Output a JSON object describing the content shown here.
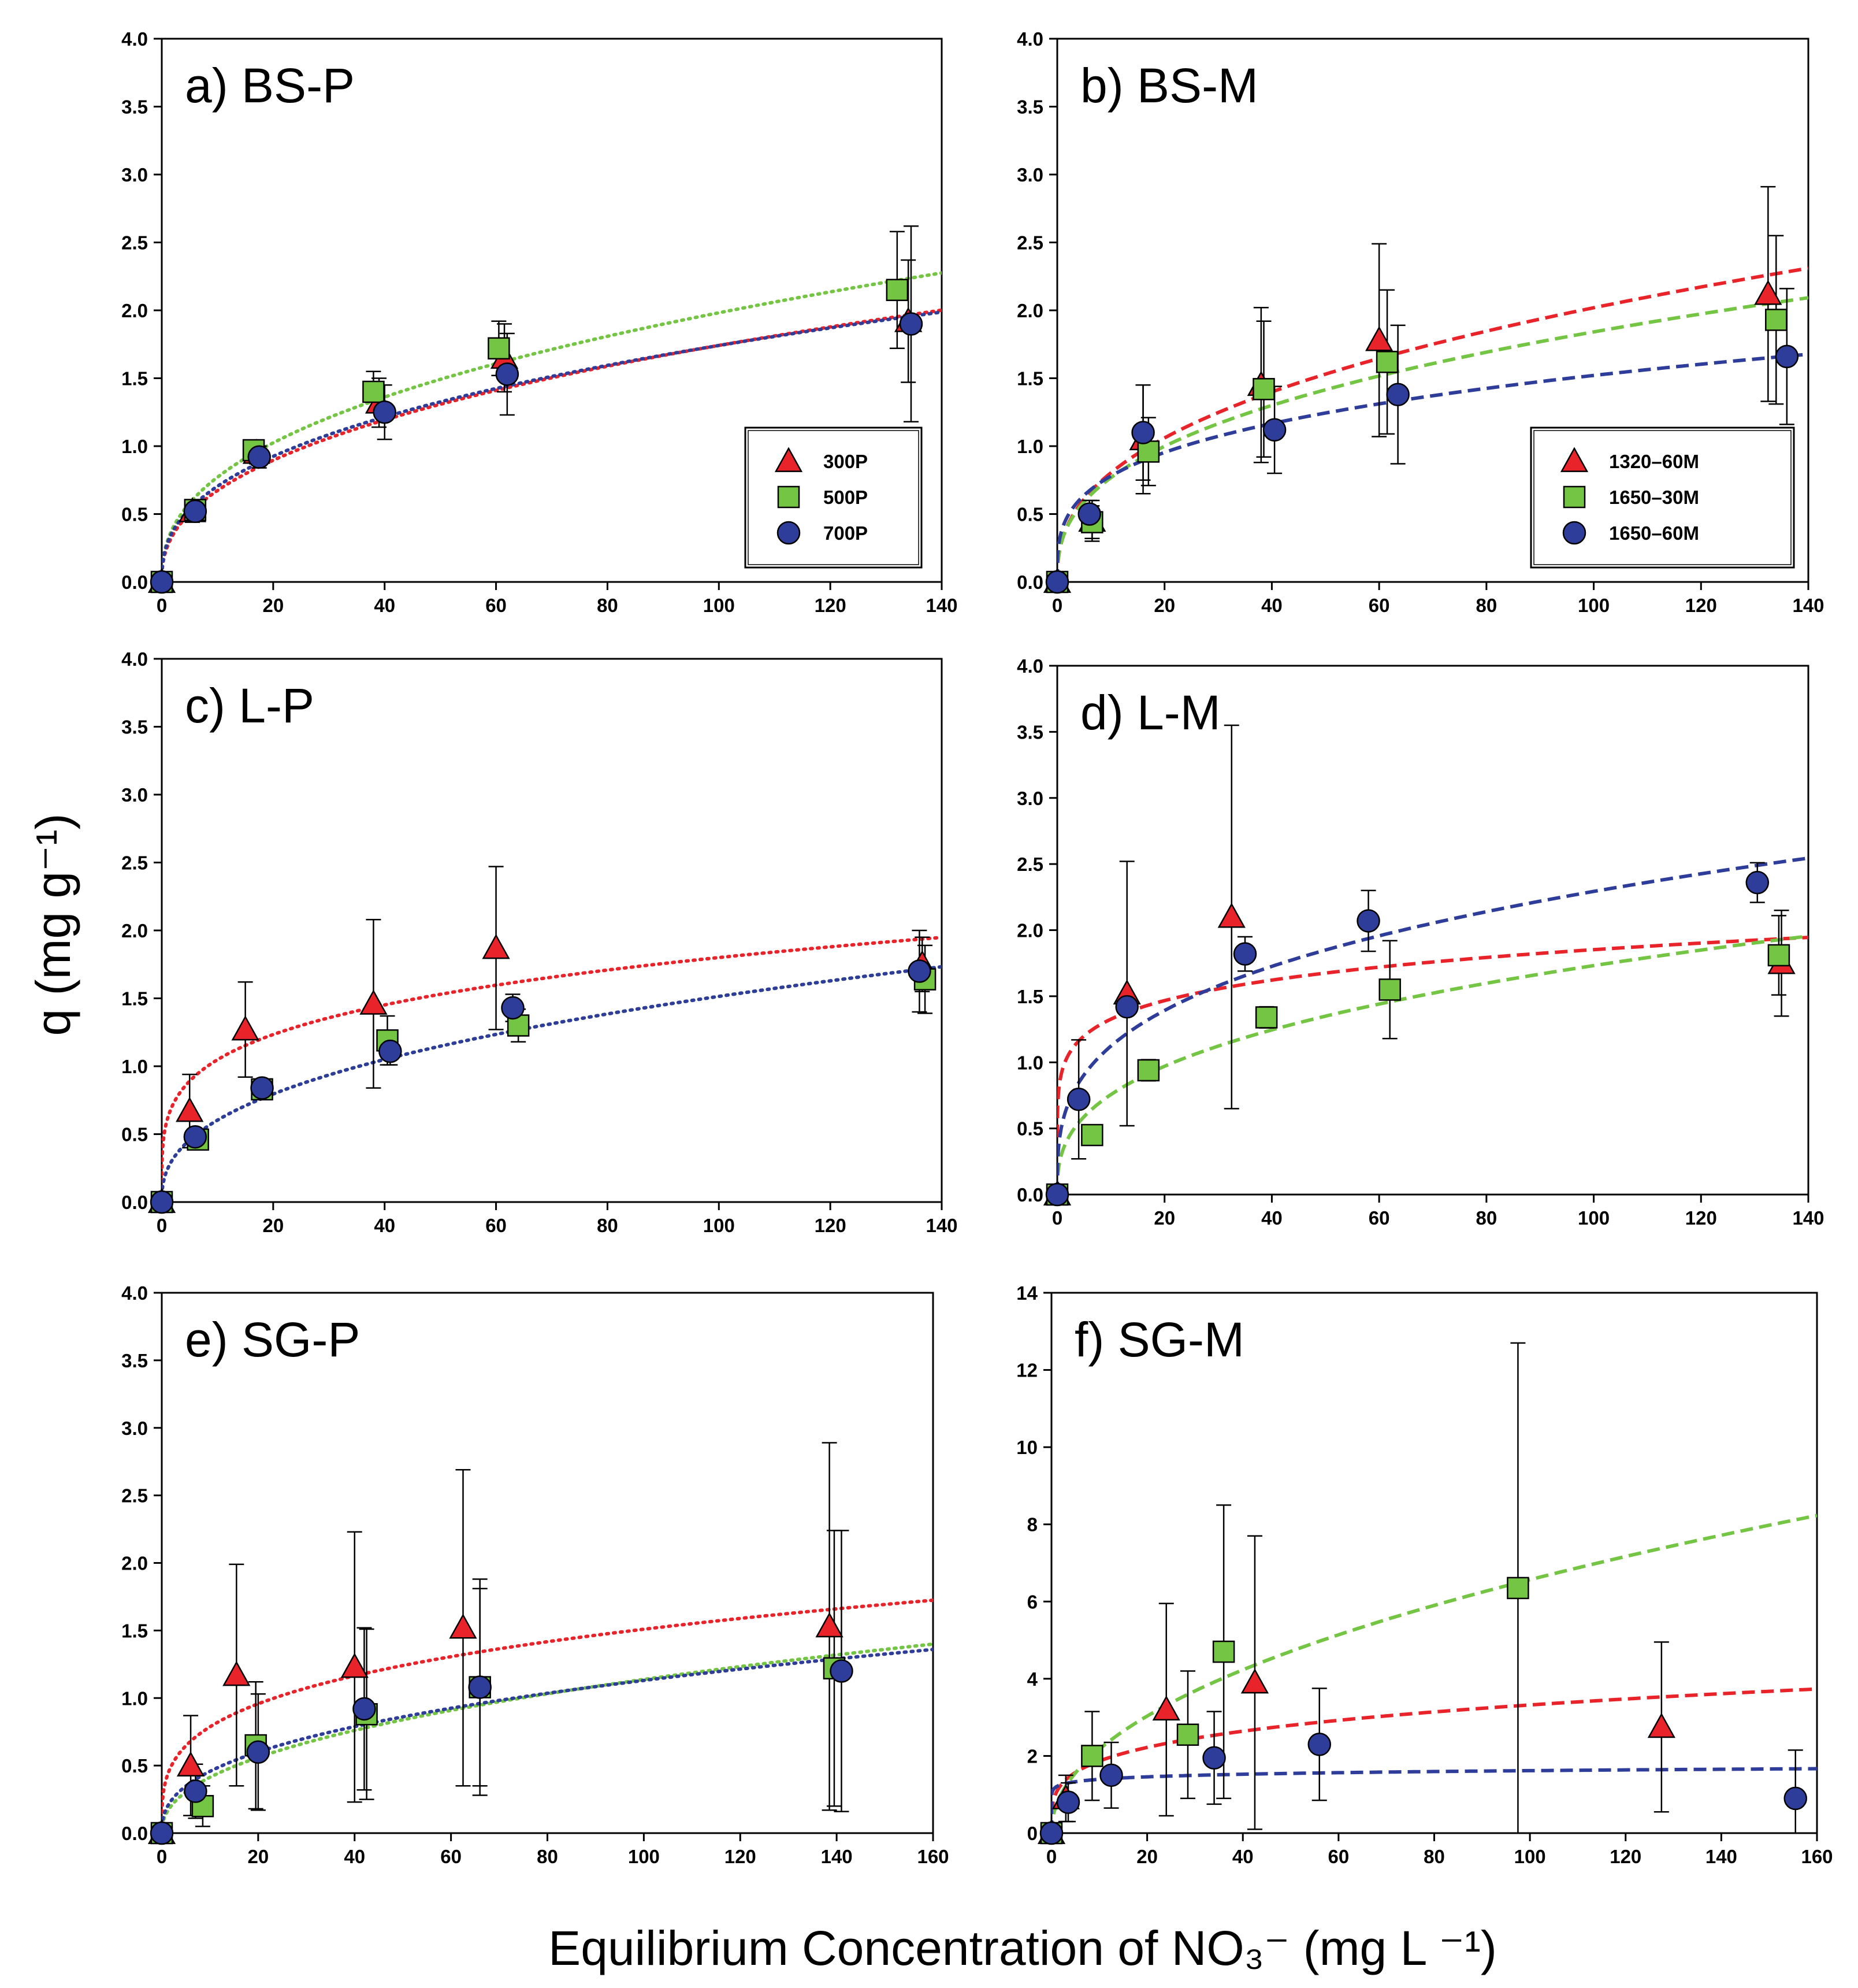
{
  "figure": {
    "ylabel": "q (mg g⁻¹)",
    "xlabel": "Equilibrium Concentration of NO₃⁻ (mg L ⁻¹)"
  },
  "colors": {
    "red": "#e8232a",
    "green": "#74c543",
    "blue": "#2e3d99"
  },
  "chart_data": [
    {
      "id": "a",
      "title": "a) BS-P",
      "type": "scatter",
      "xlim": [
        0,
        140
      ],
      "ylim": [
        0,
        4
      ],
      "xticks": [
        "0",
        "20",
        "40",
        "60",
        "80",
        "100",
        "120",
        "140"
      ],
      "yticks": [
        "0.0",
        "0.5",
        "1.0",
        "1.5",
        "2.0",
        "2.5",
        "3.0",
        "3.5",
        "4.0"
      ],
      "fit_style": "dotted",
      "legend": [
        "300P",
        "500P",
        "700P"
      ],
      "legend_position": "bottom-right",
      "series": [
        {
          "name": "300P",
          "color": "red",
          "marker": "triangle",
          "x": [
            0,
            5.5,
            17,
            39,
            61.5,
            134
          ],
          "y": [
            0.0,
            0.52,
            0.95,
            1.32,
            1.65,
            1.92
          ],
          "err": [
            0,
            0.08,
            0.08,
            0.18,
            0.25,
            0.45
          ],
          "fit": {
            "model": "freundlich",
            "k": 0.26,
            "n": 0.413
          }
        },
        {
          "name": "500P",
          "color": "green",
          "marker": "square",
          "x": [
            0,
            6,
            16.5,
            38,
            60.5,
            132
          ],
          "y": [
            0.0,
            0.53,
            0.97,
            1.4,
            1.72,
            2.15
          ],
          "err": [
            0,
            0.06,
            0.06,
            0.15,
            0.2,
            0.43
          ],
          "fit": {
            "model": "freundlich",
            "k": 0.3,
            "n": 0.41
          }
        },
        {
          "name": "700P",
          "color": "blue",
          "marker": "circle",
          "x": [
            0,
            6,
            17.5,
            40,
            62,
            134.5
          ],
          "y": [
            0.0,
            0.52,
            0.92,
            1.25,
            1.53,
            1.9
          ],
          "err": [
            0,
            0.05,
            0.08,
            0.2,
            0.3,
            0.72
          ],
          "fit": {
            "model": "freundlich",
            "k": 0.285,
            "n": 0.393
          }
        }
      ]
    },
    {
      "id": "b",
      "title": "b) BS-M",
      "type": "scatter",
      "xlim": [
        0,
        140
      ],
      "ylim": [
        0,
        4
      ],
      "xticks": [
        "0",
        "20",
        "40",
        "60",
        "80",
        "100",
        "120",
        "140"
      ],
      "yticks": [
        "0.0",
        "0.5",
        "1.0",
        "1.5",
        "2.0",
        "2.5",
        "3.0",
        "3.5",
        "4.0"
      ],
      "fit_style": "dashed",
      "legend": [
        "1320–60M",
        "1650–30M",
        "1650–60M"
      ],
      "legend_position": "bottom-right",
      "series": [
        {
          "name": "1320–60M",
          "color": "red",
          "marker": "triangle",
          "x": [
            0,
            6.5,
            16,
            38,
            60,
            132.5
          ],
          "y": [
            0.0,
            0.45,
            1.05,
            1.45,
            1.78,
            2.12
          ],
          "err": [
            0,
            0.15,
            0.4,
            0.57,
            0.71,
            0.79
          ],
          "fit": {
            "model": "freundlich",
            "k": 0.32,
            "n": 0.4
          }
        },
        {
          "name": "1650–30M",
          "color": "green",
          "marker": "square",
          "x": [
            0,
            6.5,
            17,
            38.5,
            61.5,
            134
          ],
          "y": [
            0.0,
            0.44,
            0.96,
            1.42,
            1.62,
            1.93
          ],
          "err": [
            0,
            0.12,
            0.25,
            0.5,
            0.53,
            0.62
          ],
          "fit": {
            "model": "freundlich",
            "k": 0.32,
            "n": 0.38
          }
        },
        {
          "name": "1650–60M",
          "color": "blue",
          "marker": "circle",
          "x": [
            0,
            6,
            16,
            40.5,
            63.5,
            136
          ],
          "y": [
            0.0,
            0.5,
            1.1,
            1.12,
            1.38,
            1.66
          ],
          "err": [
            0,
            0.1,
            0.35,
            0.32,
            0.51,
            0.5
          ],
          "fit": {
            "model": "freundlich",
            "k": 0.4,
            "n": 0.29
          }
        }
      ]
    },
    {
      "id": "c",
      "title": "c) L-P",
      "type": "scatter",
      "xlim": [
        0,
        140
      ],
      "ylim": [
        0,
        4
      ],
      "xticks": [
        "0",
        "20",
        "40",
        "60",
        "80",
        "100",
        "120",
        "140"
      ],
      "yticks": [
        "0.0",
        "0.5",
        "1.0",
        "1.5",
        "2.0",
        "2.5",
        "3.0",
        "3.5",
        "4.0"
      ],
      "fit_style": "dotted",
      "series": [
        {
          "name": "300P",
          "color": "red",
          "marker": "triangle",
          "x": [
            0,
            5,
            15,
            38,
            60,
            136.5
          ],
          "y": [
            0.0,
            0.67,
            1.27,
            1.46,
            1.87,
            1.75
          ],
          "err": [
            0,
            0.27,
            0.35,
            0.62,
            0.6,
            0.2
          ],
          "fit": {
            "model": "freundlich",
            "k": 0.61,
            "n": 0.235
          }
        },
        {
          "name": "500P",
          "color": "green",
          "marker": "square",
          "x": [
            0,
            6.5,
            18,
            40.5,
            64,
            137
          ],
          "y": [
            0.0,
            0.46,
            0.83,
            1.19,
            1.3,
            1.64
          ],
          "err": [
            0,
            0.06,
            0.05,
            0.18,
            0.12,
            0.25
          ],
          "fit": {
            "model": "freundlich",
            "k": 0.24,
            "n": 0.4
          }
        },
        {
          "name": "700P",
          "color": "blue",
          "marker": "circle",
          "x": [
            0,
            6,
            18,
            41,
            63,
            136
          ],
          "y": [
            0.0,
            0.48,
            0.84,
            1.11,
            1.43,
            1.7
          ],
          "err": [
            0,
            0.05,
            0.05,
            0.1,
            0.1,
            0.3
          ],
          "fit": {
            "model": "freundlich",
            "k": 0.24,
            "n": 0.4
          }
        }
      ]
    },
    {
      "id": "d",
      "title": "d) L-M",
      "type": "scatter",
      "xlim": [
        0,
        140
      ],
      "ylim": [
        0,
        4
      ],
      "xticks": [
        "0",
        "20",
        "40",
        "60",
        "80",
        "100",
        "120",
        "140"
      ],
      "yticks": [
        "0.0",
        "0.5",
        "1.0",
        "1.5",
        "2.0",
        "2.5",
        "3.0",
        "3.5",
        "4.0"
      ],
      "fit_style": "dashed",
      "series": [
        {
          "name": "1320–60M",
          "color": "red",
          "marker": "triangle",
          "x": [
            0,
            13,
            32.5,
            135
          ],
          "y": [
            0.0,
            1.52,
            2.1,
            1.75
          ],
          "err": [
            0,
            1.0,
            1.45,
            0.4
          ],
          "fit": {
            "model": "freundlich",
            "k": 0.95,
            "n": 0.145
          }
        },
        {
          "name": "1650–30M",
          "color": "green",
          "marker": "square",
          "x": [
            0,
            6.5,
            17,
            39,
            62,
            134.5
          ],
          "y": [
            0.0,
            0.45,
            0.94,
            1.34,
            1.55,
            1.81
          ],
          "err": [
            0,
            0.04,
            0.08,
            0.08,
            0.37,
            0.3
          ],
          "fit": {
            "model": "freundlich",
            "k": 0.33,
            "n": 0.36
          }
        },
        {
          "name": "1650–60M",
          "color": "blue",
          "marker": "circle",
          "x": [
            0,
            4,
            13,
            35,
            58,
            130.5
          ],
          "y": [
            0.0,
            0.72,
            1.42,
            1.82,
            2.07,
            2.36
          ],
          "err": [
            0,
            0.45,
            0.05,
            0.13,
            0.23,
            0.15
          ],
          "fit": {
            "model": "freundlich",
            "k": 0.55,
            "n": 0.31
          }
        }
      ]
    },
    {
      "id": "e",
      "title": "e) SG-P",
      "type": "scatter",
      "xlim": [
        0,
        160
      ],
      "ylim": [
        0,
        4
      ],
      "xticks": [
        "0",
        "20",
        "40",
        "60",
        "80",
        "100",
        "120",
        "140",
        "160"
      ],
      "yticks": [
        "0.0",
        "0.5",
        "1.0",
        "1.5",
        "2.0",
        "2.5",
        "3.0",
        "3.5",
        "4.0"
      ],
      "fit_style": "dotted",
      "series": [
        {
          "name": "300P",
          "color": "red",
          "marker": "triangle",
          "x": [
            0,
            6,
            15.5,
            40,
            62.5,
            138.5
          ],
          "y": [
            0.0,
            0.5,
            1.17,
            1.23,
            1.52,
            1.53
          ],
          "err": [
            0,
            0.37,
            0.82,
            1.0,
            1.17,
            1.36
          ],
          "fit": {
            "model": "freundlich",
            "k": 0.41,
            "n": 0.283
          }
        },
        {
          "name": "500P",
          "color": "green",
          "marker": "square",
          "x": [
            0,
            8.5,
            19.5,
            42.5,
            66,
            139.5
          ],
          "y": [
            0.0,
            0.2,
            0.65,
            0.88,
            1.08,
            1.22
          ],
          "err": [
            0,
            0.15,
            0.47,
            0.63,
            0.8,
            1.02
          ],
          "fit": {
            "model": "freundlich",
            "k": 0.15,
            "n": 0.44
          }
        },
        {
          "name": "700P",
          "color": "blue",
          "marker": "circle",
          "x": [
            0,
            7,
            20,
            42,
            66,
            141
          ],
          "y": [
            0.0,
            0.31,
            0.6,
            0.92,
            1.08,
            1.2
          ],
          "err": [
            0,
            0.2,
            0.43,
            0.6,
            0.73,
            1.04
          ],
          "fit": {
            "model": "freundlich",
            "k": 0.185,
            "n": 0.393
          }
        }
      ]
    },
    {
      "id": "f",
      "title": "f) SG-M",
      "type": "scatter",
      "xlim": [
        0,
        160
      ],
      "ylim": [
        0,
        14
      ],
      "xticks": [
        "0",
        "20",
        "40",
        "60",
        "80",
        "100",
        "120",
        "140",
        "160"
      ],
      "yticks": [
        "0",
        "2",
        "4",
        "6",
        "8",
        "10",
        "12",
        "14"
      ],
      "fit_style": "dashed",
      "series": [
        {
          "name": "1320–60M",
          "color": "red",
          "marker": "triangle",
          "x": [
            0,
            3,
            24,
            42.5,
            127.5
          ],
          "y": [
            0.0,
            0.9,
            3.2,
            3.9,
            2.75
          ],
          "err": [
            0,
            0.6,
            2.75,
            3.8,
            2.2
          ],
          "fit": {
            "model": "freundlich",
            "k": 1.05,
            "n": 0.25
          }
        },
        {
          "name": "1650–30M",
          "color": "green",
          "marker": "square",
          "x": [
            0,
            8.5,
            28.5,
            36,
            97.5
          ],
          "y": [
            0.0,
            2.0,
            2.55,
            4.7,
            6.35
          ],
          "err": [
            0,
            1.15,
            1.65,
            3.8,
            6.35
          ],
          "fit": {
            "model": "freundlich",
            "k": 0.72,
            "n": 0.48
          }
        },
        {
          "name": "1650–60M",
          "color": "blue",
          "marker": "circle",
          "x": [
            0,
            3.5,
            12.5,
            34,
            56,
            155.5
          ],
          "y": [
            0.0,
            0.8,
            1.5,
            1.95,
            2.3,
            0.9
          ],
          "err": [
            0,
            0.5,
            0.85,
            1.2,
            1.45,
            1.25
          ],
          "fit": {
            "model": "freundlich",
            "k": 1.2,
            "n": 0.065
          }
        }
      ]
    }
  ]
}
